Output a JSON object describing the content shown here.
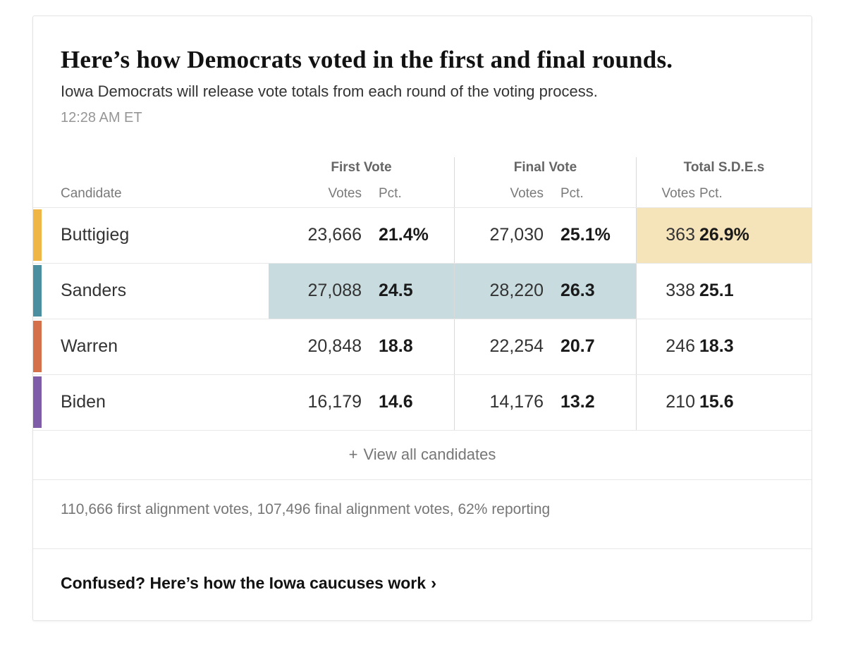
{
  "header": {
    "title": "Here’s how Democrats voted in the first and final rounds.",
    "subtitle": "Iowa Democrats will release vote totals from each round of the voting process.",
    "timestamp": "12:28 AM ET"
  },
  "table": {
    "candidate_header": "Candidate",
    "groups": [
      {
        "label": "First Vote",
        "votes_label": "Votes",
        "pct_label": "Pct."
      },
      {
        "label": "Final Vote",
        "votes_label": "Votes",
        "pct_label": "Pct."
      },
      {
        "label": "Total S.D.E.s",
        "votes_label": "Votes",
        "pct_label": "Pct."
      }
    ],
    "rows": [
      {
        "candidate": "Buttigieg",
        "color": "#efb645",
        "first": {
          "votes": "23,666",
          "pct": "21.4%",
          "highlight": false
        },
        "final": {
          "votes": "27,030",
          "pct": "25.1%",
          "highlight": false
        },
        "sde": {
          "votes": "363",
          "pct": "26.9%",
          "highlight": true
        }
      },
      {
        "candidate": "Sanders",
        "color": "#4a8f9f",
        "first": {
          "votes": "27,088",
          "pct": "24.5",
          "highlight": true
        },
        "final": {
          "votes": "28,220",
          "pct": "26.3",
          "highlight": true
        },
        "sde": {
          "votes": "338",
          "pct": "25.1",
          "highlight": false
        }
      },
      {
        "candidate": "Warren",
        "color": "#d4714b",
        "first": {
          "votes": "20,848",
          "pct": "18.8",
          "highlight": false
        },
        "final": {
          "votes": "22,254",
          "pct": "20.7",
          "highlight": false
        },
        "sde": {
          "votes": "246",
          "pct": "18.3",
          "highlight": false
        }
      },
      {
        "candidate": "Biden",
        "color": "#7e5ca7",
        "first": {
          "votes": "16,179",
          "pct": "14.6",
          "highlight": false
        },
        "final": {
          "votes": "14,176",
          "pct": "13.2",
          "highlight": false
        },
        "sde": {
          "votes": "210",
          "pct": "15.6",
          "highlight": false
        }
      }
    ],
    "view_all_plus": "+",
    "view_all_label": "View all candidates"
  },
  "footer": {
    "stats": "110,666 first alignment votes, 107,496 final alignment votes, 62% reporting",
    "link": "Confused? Here’s how the Iowa caucuses work",
    "link_chevron": "›"
  },
  "colors": {
    "leader_highlight": "#c8dce0",
    "sde_highlight": "#f5e3ba"
  },
  "chart_data": {
    "type": "table",
    "title": "Here’s how Democrats voted in the first and final rounds.",
    "columns": [
      "Candidate",
      "First Vote Votes",
      "First Vote Pct.",
      "Final Vote Votes",
      "Final Vote Pct.",
      "Total S.D.E.s Votes",
      "Total S.D.E.s Pct."
    ],
    "rows": [
      [
        "Buttigieg",
        23666,
        21.4,
        27030,
        25.1,
        363,
        26.9
      ],
      [
        "Sanders",
        27088,
        24.5,
        28220,
        26.3,
        338,
        25.1
      ],
      [
        "Warren",
        20848,
        18.8,
        22254,
        20.7,
        246,
        18.3
      ],
      [
        "Biden",
        16179,
        14.6,
        14176,
        13.2,
        210,
        15.6
      ]
    ],
    "notes": "110,666 first alignment votes, 107,496 final alignment votes, 62% reporting"
  }
}
